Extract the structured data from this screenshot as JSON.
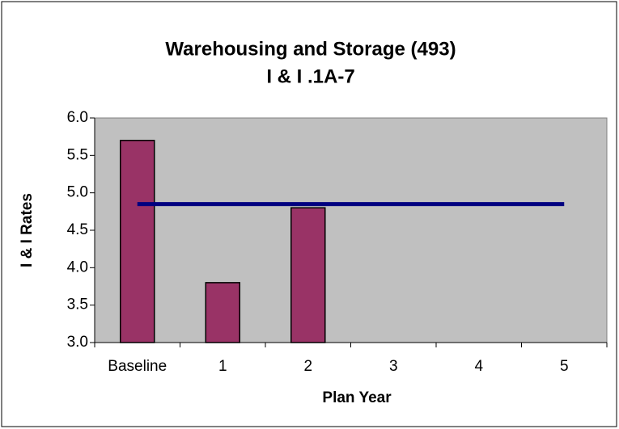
{
  "chart_data": {
    "type": "bar_line",
    "title": "Warehousing and Storage (493)",
    "subtitle": "I & I .1A-7",
    "x_label": "Plan Year",
    "y_label": "I & I Rates",
    "categories": [
      "Baseline",
      "1",
      "2",
      "3",
      "4",
      "5"
    ],
    "series": [
      {
        "type": "bar",
        "color": "#993366",
        "values": [
          5.7,
          3.8,
          4.8,
          null,
          null,
          null
        ]
      },
      {
        "type": "line",
        "color": "#000080",
        "values": [
          4.85,
          4.85,
          4.85,
          4.85,
          4.85,
          4.85
        ]
      }
    ],
    "ylim": [
      3,
      6
    ],
    "yticks": [
      {
        "value": 3,
        "label": "3.0"
      },
      3.5,
      {
        "value": 4,
        "label": "4.0"
      },
      4.5,
      {
        "value": 5,
        "label": "5.0"
      },
      5.5,
      {
        "value": 6,
        "label": "6.0"
      }
    ],
    "plot_background": "#c0c0c0",
    "grid": false
  }
}
